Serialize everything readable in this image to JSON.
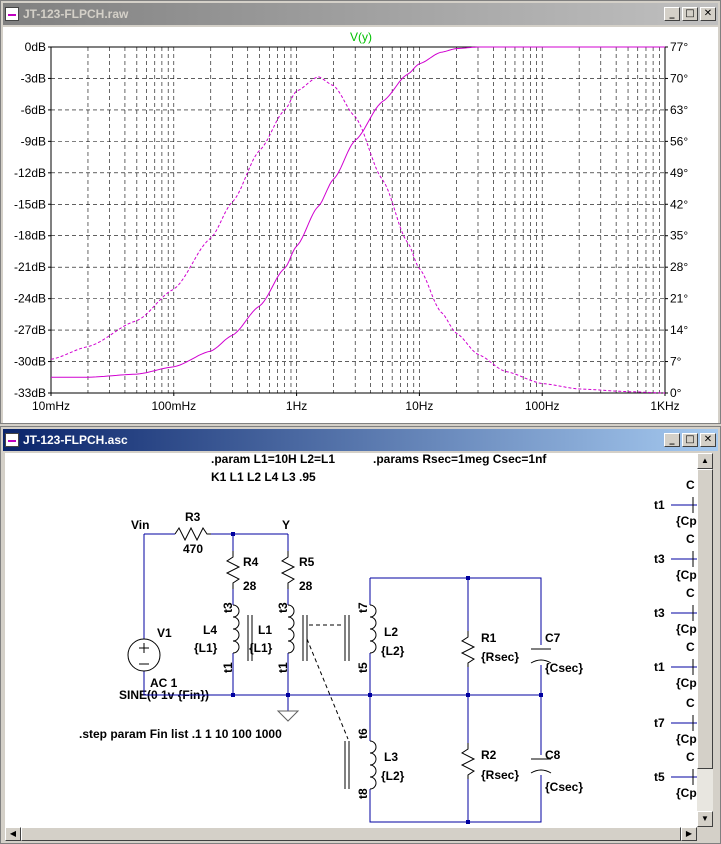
{
  "waveform_window": {
    "title": "JT-123-FLPCH.raw",
    "trace_label": "V(y)",
    "colors": {
      "plot_bg": "#ffffff",
      "trace": "#d000d0",
      "trace_label": "#00c000",
      "grid": "#000000"
    }
  },
  "schematic_window": {
    "title": "JT-123-FLPCH.asc",
    "directives": {
      "param": ".param L1=10H L2=L1",
      "params": ".params Rsec=1meg Csec=1nf",
      "coupling": "K1 L1 L2 L4  L3 .95",
      "source": "SINE(0 1v {Fin})",
      "step": ".step param Fin list .1 1 10 100 1000"
    },
    "nets": {
      "vin": "Vin",
      "y": "Y"
    },
    "components": {
      "r3": {
        "name": "R3",
        "value": "470"
      },
      "r4": {
        "name": "R4",
        "value": "28"
      },
      "r5": {
        "name": "R5",
        "value": "28"
      },
      "v1": {
        "name": "V1",
        "value": "AC 1"
      },
      "l4": {
        "name": "L4",
        "value": "{L1}"
      },
      "l1": {
        "name": "L1",
        "value": "{L1}"
      },
      "l2": {
        "name": "L2",
        "value": "{L2}"
      },
      "l3": {
        "name": "L3",
        "value": "{L2}"
      },
      "r1": {
        "name": "R1",
        "value": "{Rsec}"
      },
      "r2": {
        "name": "R2",
        "value": "{Rsec}"
      },
      "c7": {
        "name": "C7",
        "value": "{Csec}"
      },
      "c8": {
        "name": "C8",
        "value": "{Csec}"
      }
    },
    "pin_labels": {
      "l4_top": "t3",
      "l4_bot": "t1",
      "l1_top": "t3",
      "l1_bot": "t1",
      "l2_top": "t7",
      "l2_bot": "t5",
      "l3_top": "t6",
      "l3_bot": "t8"
    },
    "right_edge_labels": [
      {
        "net": "t1",
        "ref": "C",
        "value": "{Cp"
      },
      {
        "net": "t3",
        "ref": "C",
        "value": "{Cp"
      },
      {
        "net": "t3",
        "ref": "C",
        "value": "{Cp"
      },
      {
        "net": "t1",
        "ref": "C",
        "value": "{Cp"
      },
      {
        "net": "t7",
        "ref": "C",
        "value": "{Cp"
      },
      {
        "net": "t5",
        "ref": "C",
        "value": "{Cp"
      }
    ],
    "colors": {
      "wire": "#0000a0",
      "text": "#000000",
      "ground": "#606060"
    }
  },
  "chart_data": {
    "type": "line",
    "title": "V(y)",
    "x_scale": "log",
    "x_ticks": [
      "10mHz",
      "100mHz",
      "1Hz",
      "10Hz",
      "100Hz",
      "1KHz"
    ],
    "xlim": [
      0.01,
      1000
    ],
    "y_left_ticks": [
      "0dB",
      "-3dB",
      "-6dB",
      "-9dB",
      "-12dB",
      "-15dB",
      "-18dB",
      "-21dB",
      "-24dB",
      "-27dB",
      "-30dB",
      "-33dB"
    ],
    "ylim_left_db": [
      -33,
      0
    ],
    "y_right_ticks": [
      "77°",
      "70°",
      "63°",
      "56°",
      "49°",
      "42°",
      "35°",
      "28°",
      "21°",
      "14°",
      "7°",
      "0°"
    ],
    "ylim_right_deg": [
      0,
      77
    ],
    "grid": true,
    "series": [
      {
        "style": "solid",
        "x": [
          0.01,
          0.02,
          0.05,
          0.1,
          0.2,
          0.3,
          0.5,
          0.8,
          1,
          1.5,
          2,
          3,
          5,
          8,
          10,
          15,
          20,
          30,
          50,
          100,
          200,
          500,
          1000
        ],
        "y": [
          -31.5,
          -31.5,
          -31.2,
          -30.5,
          -29,
          -27.5,
          -24.7,
          -21.1,
          -19,
          -15.2,
          -12.6,
          -8.9,
          -5.2,
          -2.6,
          -1.6,
          -0.5,
          -0.15,
          0,
          0,
          0,
          0,
          0,
          0
        ]
      },
      {
        "style": "dashed",
        "x": [
          0.01,
          0.02,
          0.05,
          0.1,
          0.2,
          0.3,
          0.5,
          0.8,
          1,
          1.5,
          2,
          3,
          5,
          8,
          10,
          15,
          20,
          30,
          50,
          100,
          200,
          500,
          1000
        ],
        "y": [
          7.5,
          10.3,
          16.1,
          23.1,
          34.5,
          42.5,
          54,
          63,
          67.2,
          70.4,
          68.4,
          61.5,
          47.5,
          33.5,
          27.7,
          18,
          13.3,
          8.6,
          4.8,
          2.1,
          0.9,
          0.3,
          0
        ]
      }
    ]
  }
}
